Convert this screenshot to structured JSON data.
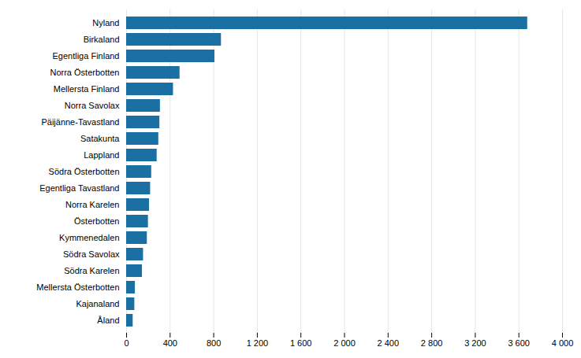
{
  "chart_data": {
    "type": "bar",
    "orientation": "horizontal",
    "categories": [
      "Nyland",
      "Birkaland",
      "Egentliga Finland",
      "Norra Österbotten",
      "Mellersta Finland",
      "Norra Savolax",
      "Päijänne-Tavastland",
      "Satakunta",
      "Lappland",
      "Södra Österbotten",
      "Egentliga Tavastland",
      "Norra Karelen",
      "Österbotten",
      "Kymmenedalen",
      "Södra Savolax",
      "Södra Karelen",
      "Mellersta Österbotten",
      "Kajanaland",
      "Åland"
    ],
    "values": [
      3680,
      870,
      810,
      490,
      430,
      310,
      305,
      295,
      280,
      230,
      220,
      210,
      200,
      190,
      155,
      145,
      80,
      75,
      60
    ],
    "color": "#1a6fa3",
    "xlim": [
      0,
      4000
    ],
    "xticks": [
      0,
      400,
      800,
      {
        "value": 1200,
        "label": "1 200"
      },
      {
        "value": 1600,
        "label": "1 600"
      },
      {
        "value": 2000,
        "label": "2 000"
      },
      {
        "value": 2400,
        "label": "2 400"
      },
      {
        "value": 2800,
        "label": "2 800"
      },
      {
        "value": 3200,
        "label": "3 200"
      },
      {
        "value": 3600,
        "label": "3 600"
      },
      {
        "value": 4000,
        "label": "4 000"
      }
    ],
    "grid": true
  }
}
